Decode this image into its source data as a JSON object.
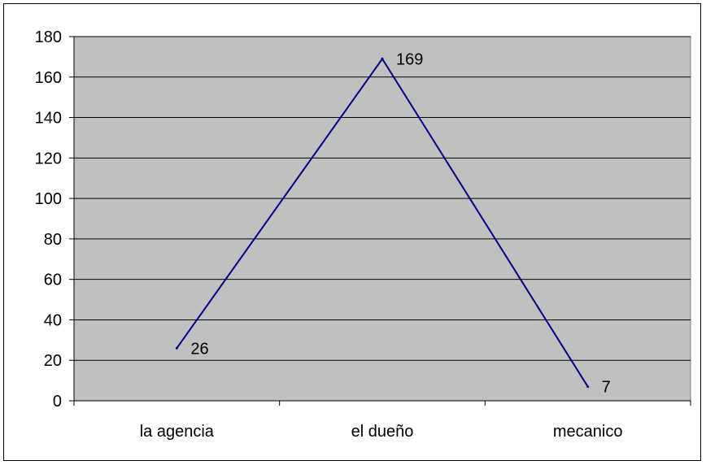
{
  "chart_data": {
    "type": "line",
    "categories": [
      "la agencia",
      "el dueño",
      "mecanico"
    ],
    "values": [
      26,
      169,
      7
    ],
    "data_labels": [
      "26",
      "169",
      "7"
    ],
    "yticks": [
      "0",
      "20",
      "40",
      "60",
      "80",
      "100",
      "120",
      "140",
      "160",
      "180"
    ],
    "ylim": [
      0,
      180
    ],
    "grid": true,
    "legend": "none",
    "colors": {
      "plot_background": "#c0c0c0",
      "line": "#000080",
      "gridline": "#000000"
    }
  }
}
